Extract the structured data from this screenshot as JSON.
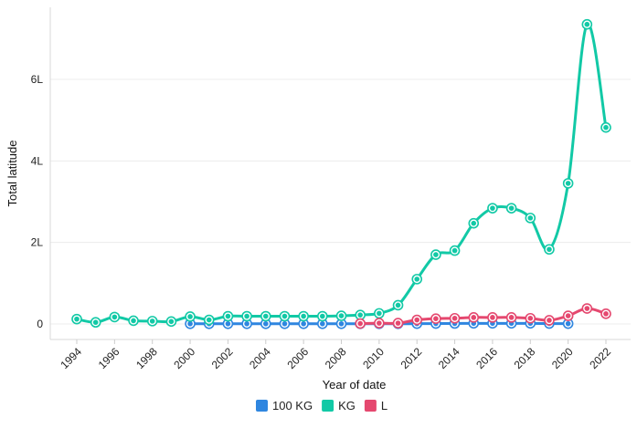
{
  "chart_data": {
    "type": "line",
    "title": "",
    "xlabel": "Year of date",
    "ylabel": "Total latitude",
    "xlim": [
      1994,
      2022
    ],
    "ylim": [
      0,
      7400000
    ],
    "x_ticks": [
      "1994",
      "1996",
      "1998",
      "2000",
      "2002",
      "2004",
      "2006",
      "2008",
      "2010",
      "2012",
      "2014",
      "2016",
      "2018",
      "2020",
      "2022"
    ],
    "y_ticks": [
      {
        "value": 0,
        "label": "0"
      },
      {
        "value": 2000000,
        "label": "2L"
      },
      {
        "value": 4000000,
        "label": "4L"
      },
      {
        "value": 6000000,
        "label": "6L"
      }
    ],
    "grid": true,
    "legend_position": "bottom",
    "series": [
      {
        "name": "100 KG",
        "color": "#2f86e0",
        "points": [
          [
            2000,
            5000
          ],
          [
            2001,
            5000
          ],
          [
            2002,
            5000
          ],
          [
            2003,
            5000
          ],
          [
            2004,
            5000
          ],
          [
            2005,
            5000
          ],
          [
            2006,
            5000
          ],
          [
            2007,
            5000
          ],
          [
            2008,
            5000
          ],
          [
            2009,
            5000
          ],
          [
            2010,
            5000
          ],
          [
            2011,
            5000
          ],
          [
            2012,
            8000
          ],
          [
            2013,
            10000
          ],
          [
            2014,
            12000
          ],
          [
            2015,
            15000
          ],
          [
            2016,
            15000
          ],
          [
            2017,
            15000
          ],
          [
            2018,
            15000
          ],
          [
            2019,
            10000
          ],
          [
            2020,
            8000
          ]
        ]
      },
      {
        "name": "KG",
        "color": "#12c9a6",
        "points": [
          [
            1994,
            120000
          ],
          [
            1995,
            40000
          ],
          [
            1996,
            170000
          ],
          [
            1997,
            80000
          ],
          [
            1998,
            70000
          ],
          [
            1999,
            60000
          ],
          [
            2000,
            180000
          ],
          [
            2001,
            100000
          ],
          [
            2002,
            190000
          ],
          [
            2003,
            190000
          ],
          [
            2004,
            190000
          ],
          [
            2005,
            190000
          ],
          [
            2006,
            190000
          ],
          [
            2007,
            190000
          ],
          [
            2008,
            200000
          ],
          [
            2009,
            220000
          ],
          [
            2010,
            260000
          ],
          [
            2011,
            460000
          ],
          [
            2012,
            1100000
          ],
          [
            2013,
            1700000
          ],
          [
            2014,
            1800000
          ],
          [
            2015,
            2470000
          ],
          [
            2016,
            2840000
          ],
          [
            2017,
            2840000
          ],
          [
            2018,
            2600000
          ],
          [
            2019,
            1830000
          ],
          [
            2020,
            3450000
          ],
          [
            2021,
            7350000
          ],
          [
            2022,
            4820000
          ]
        ]
      },
      {
        "name": "L",
        "color": "#e5486f",
        "points": [
          [
            2009,
            10000
          ],
          [
            2010,
            20000
          ],
          [
            2011,
            20000
          ],
          [
            2012,
            100000
          ],
          [
            2013,
            130000
          ],
          [
            2014,
            140000
          ],
          [
            2015,
            160000
          ],
          [
            2016,
            160000
          ],
          [
            2017,
            160000
          ],
          [
            2018,
            140000
          ],
          [
            2019,
            90000
          ],
          [
            2020,
            200000
          ],
          [
            2021,
            380000
          ],
          [
            2022,
            250000
          ]
        ]
      }
    ]
  }
}
